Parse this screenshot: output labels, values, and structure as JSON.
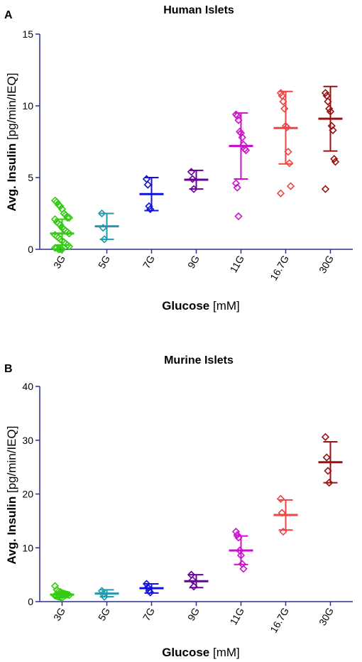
{
  "chart_data": [
    {
      "type": "scatter",
      "panel_label": "A",
      "title": "Human Islets",
      "ylabel_bold": "Avg. Insulin",
      "ylabel_unit": "[pg/min/IEQ]",
      "xlabel_bold": "Glucose",
      "xlabel_unit": "[mM]",
      "ylim": [
        0,
        15
      ],
      "yticks": [
        "0",
        "5",
        "10",
        "15"
      ],
      "categories": [
        "3G",
        "5G",
        "7G",
        "9G",
        "11G",
        "16.7G",
        "30G"
      ],
      "colors": [
        "#33cc11",
        "#2299aa",
        "#1111dd",
        "#660099",
        "#cc11cc",
        "#ee4444",
        "#991111"
      ],
      "groups": [
        {
          "name": "3G",
          "mean": 1.1,
          "sd_low": 0.3,
          "sd_high": 2.1,
          "points": [
            3.4,
            3.3,
            3.1,
            3.0,
            2.8,
            2.5,
            2.4,
            2.2,
            2.2,
            2.1,
            1.9,
            1.8,
            1.7,
            1.5,
            1.4,
            1.3,
            1.2,
            1.1,
            1.0,
            0.9,
            0.8,
            0.7,
            0.6,
            0.5,
            0.4,
            0.3,
            0.2,
            0.1,
            0.1,
            0.0,
            0.0,
            0.0
          ]
        },
        {
          "name": "5G",
          "mean": 1.6,
          "sd_low": 0.7,
          "sd_high": 2.5,
          "points": [
            2.5,
            1.5,
            0.7
          ]
        },
        {
          "name": "7G",
          "mean": 3.85,
          "sd_low": 2.7,
          "sd_high": 5.0,
          "points": [
            4.9,
            4.5,
            3.0,
            2.8
          ]
        },
        {
          "name": "9G",
          "mean": 4.85,
          "sd_low": 4.2,
          "sd_high": 5.5,
          "points": [
            5.4,
            4.9,
            4.2
          ]
        },
        {
          "name": "11G",
          "mean": 7.2,
          "sd_low": 4.9,
          "sd_high": 9.5,
          "points": [
            9.4,
            9.3,
            9.0,
            8.2,
            8.1,
            7.8,
            7.3,
            7.0,
            6.9,
            4.6,
            4.3,
            2.3
          ]
        },
        {
          "name": "16.7G",
          "mean": 8.45,
          "sd_low": 5.95,
          "sd_high": 11.0,
          "points": [
            10.9,
            10.7,
            10.3,
            9.8,
            8.6,
            8.5,
            6.8,
            6.0,
            4.4,
            3.9
          ]
        },
        {
          "name": "30G",
          "mean": 9.1,
          "sd_low": 6.85,
          "sd_high": 11.35,
          "points": [
            10.9,
            10.7,
            10.3,
            9.8,
            9.6,
            8.6,
            8.3,
            6.3,
            6.1,
            4.2
          ]
        }
      ]
    },
    {
      "type": "scatter",
      "panel_label": "B",
      "title": "Murine Islets",
      "ylabel_bold": "Avg. Insulin",
      "ylabel_unit": "[pg/min/IEQ]",
      "xlabel_bold": "Glucose",
      "xlabel_unit": "[mM]",
      "ylim": [
        0,
        40
      ],
      "yticks": [
        "0",
        "10",
        "20",
        "30",
        "40"
      ],
      "categories": [
        "3G",
        "5G",
        "7G",
        "9G",
        "11G",
        "16.7G",
        "30G"
      ],
      "colors": [
        "#33cc11",
        "#2299aa",
        "#1111dd",
        "#660099",
        "#cc11cc",
        "#ee4444",
        "#991111"
      ],
      "groups": [
        {
          "name": "3G",
          "mean": 1.3,
          "sd_low": 0.8,
          "sd_high": 1.8,
          "points": [
            2.9,
            2.2,
            1.9,
            1.8,
            1.6,
            1.5,
            1.4,
            1.3,
            1.2,
            1.1,
            1.0,
            0.9,
            0.8,
            0.7,
            1.5,
            1.2
          ]
        },
        {
          "name": "5G",
          "mean": 1.5,
          "sd_low": 0.9,
          "sd_high": 2.2,
          "points": [
            2.0,
            1.4,
            0.9
          ]
        },
        {
          "name": "7G",
          "mean": 2.5,
          "sd_low": 1.6,
          "sd_high": 3.3,
          "points": [
            3.3,
            2.6,
            2.0,
            1.7
          ]
        },
        {
          "name": "9G",
          "mean": 3.8,
          "sd_low": 2.6,
          "sd_high": 5.0,
          "points": [
            5.0,
            4.0,
            2.8
          ]
        },
        {
          "name": "11G",
          "mean": 9.5,
          "sd_low": 6.9,
          "sd_high": 12.2,
          "points": [
            13.0,
            12.4,
            11.9,
            9.5,
            8.6,
            7.0,
            6.1
          ]
        },
        {
          "name": "16.7G",
          "mean": 16.1,
          "sd_low": 13.3,
          "sd_high": 18.9,
          "points": [
            19.1,
            16.5,
            13.0
          ]
        },
        {
          "name": "30G",
          "mean": 25.9,
          "sd_low": 22.1,
          "sd_high": 29.7,
          "points": [
            30.6,
            26.8,
            24.3,
            22.1
          ]
        }
      ]
    }
  ]
}
